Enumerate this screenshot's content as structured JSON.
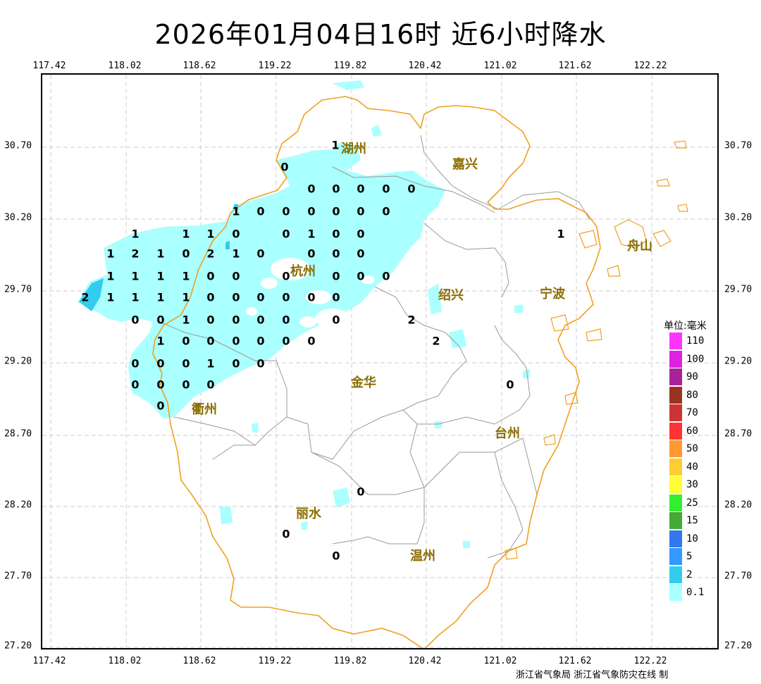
{
  "title": "2026年01月04日16时  近6小时降水",
  "axes": {
    "x_ticks": [
      "117.42",
      "118.02",
      "118.62",
      "119.22",
      "119.82",
      "120.42",
      "121.02",
      "121.62",
      "122.22"
    ],
    "y_ticks": [
      "30.70",
      "30.20",
      "29.70",
      "29.20",
      "28.70",
      "28.20",
      "27.70",
      "27.20"
    ]
  },
  "cities": [
    {
      "name": "湖州",
      "key": "huzhou"
    },
    {
      "name": "嘉兴",
      "key": "jiaxing"
    },
    {
      "name": "杭州",
      "key": "hangzhou"
    },
    {
      "name": "绍兴",
      "key": "shaoxing"
    },
    {
      "name": "宁波",
      "key": "ningbo"
    },
    {
      "name": "舟山",
      "key": "zhoushan"
    },
    {
      "name": "衢州",
      "key": "quzhou"
    },
    {
      "name": "金华",
      "key": "jinhua"
    },
    {
      "name": "台州",
      "key": "taizhou"
    },
    {
      "name": "丽水",
      "key": "lishui"
    },
    {
      "name": "温州",
      "key": "wenzhou"
    }
  ],
  "station_values": [
    "1",
    "0",
    "0",
    "0",
    "0",
    "0",
    "0",
    "1",
    "0",
    "0",
    "0",
    "0",
    "0",
    "0",
    "1",
    "1",
    "1",
    "0",
    "1",
    "0",
    "0",
    "0",
    "1",
    "2",
    "1",
    "0",
    "2",
    "1",
    "0",
    "0",
    "0",
    "0",
    "1",
    "1",
    "1",
    "1",
    "0",
    "0",
    "0",
    "0",
    "0",
    "0",
    "2",
    "1",
    "1",
    "1",
    "1",
    "0",
    "0",
    "0",
    "0",
    "0",
    "0",
    "0",
    "0",
    "1",
    "0",
    "0",
    "0",
    "0",
    "0",
    "1",
    "0",
    "0",
    "0",
    "0",
    "0",
    "0",
    "0",
    "0",
    "1",
    "0",
    "0",
    "0",
    "0",
    "0",
    "0",
    "0",
    "1",
    "2",
    "2",
    "0",
    "0",
    "0",
    "0",
    "0"
  ],
  "legend": {
    "title": "单位:毫米",
    "items": [
      {
        "label": "110",
        "color": "#ff33ff"
      },
      {
        "label": "100",
        "color": "#dd22dd"
      },
      {
        "label": "90",
        "color": "#aa2299"
      },
      {
        "label": "80",
        "color": "#993322"
      },
      {
        "label": "70",
        "color": "#cc3333"
      },
      {
        "label": "60",
        "color": "#ff3333"
      },
      {
        "label": "50",
        "color": "#ff9933"
      },
      {
        "label": "40",
        "color": "#ffcc33"
      },
      {
        "label": "30",
        "color": "#ffff33"
      },
      {
        "label": "25",
        "color": "#33ee33"
      },
      {
        "label": "15",
        "color": "#44aa33"
      },
      {
        "label": "10",
        "color": "#3377ee"
      },
      {
        "label": "5",
        "color": "#3399ff"
      },
      {
        "label": "2",
        "color": "#33ccee"
      },
      {
        "label": "0.1",
        "color": "#aaffff"
      }
    ]
  },
  "footer": "浙江省气象局 浙江省气象防灾在线 制",
  "colors": {
    "border_orange": "#f0a020",
    "city_label": "#8a6d00",
    "grid": "#cccccc",
    "admin_gray": "#999999"
  }
}
